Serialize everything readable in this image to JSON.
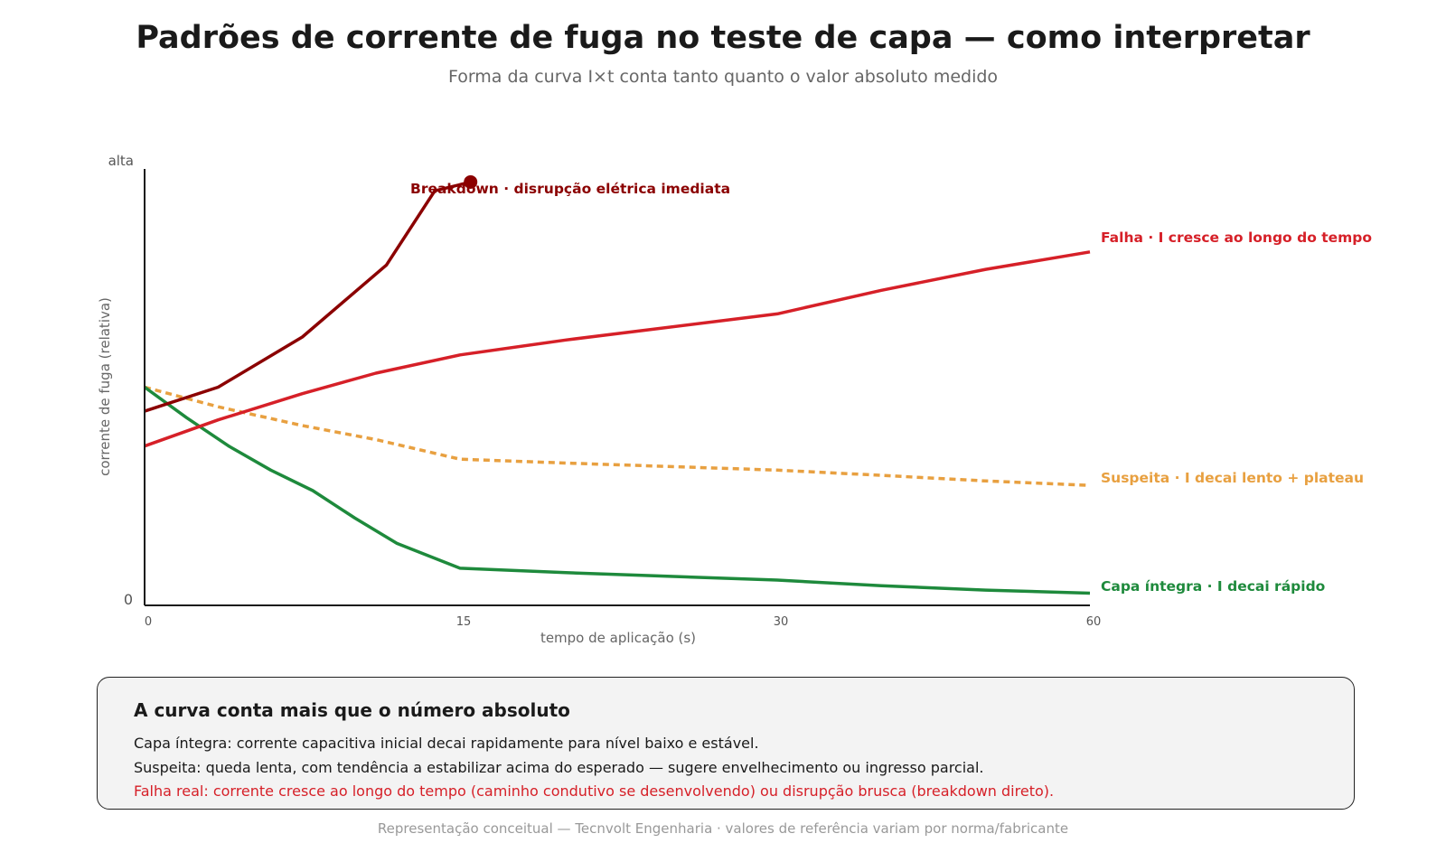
{
  "title": "Padrões de corrente de fuga no teste de capa — como interpretar",
  "subtitle": "Forma da curva I×t conta tanto quanto o valor absoluto medido",
  "chart_data": {
    "type": "line",
    "title": "Padrões de corrente de fuga no teste de capa — como interpretar",
    "subtitle": "Forma da curva I×t conta tanto quanto o valor absoluto medido",
    "xlabel": "tempo de aplicação (s)",
    "ylabel": "corrente de fuga (relativa)",
    "x_ticks": [
      {
        "value": 0,
        "label": "0"
      },
      {
        "value": 15,
        "label": "15"
      },
      {
        "value": 30,
        "label": "30"
      },
      {
        "value": 60,
        "label": "60"
      }
    ],
    "y_ticks": [
      {
        "value": 0,
        "label": "0"
      },
      {
        "value": 1,
        "label": "alta"
      }
    ],
    "xlim": [
      0,
      60
    ],
    "ylim": [
      0,
      1
    ],
    "grid": false,
    "legend": "direct labels at line ends",
    "series": [
      {
        "name": "Breakdown · disrupção elétrica imediata",
        "color": "#8b0000",
        "style": "solid",
        "end_marker": true,
        "points": [
          [
            0,
            0.445
          ],
          [
            3.5,
            0.5
          ],
          [
            7.5,
            0.615
          ],
          [
            11.5,
            0.78
          ],
          [
            13.8,
            0.95
          ],
          [
            15.5,
            0.97
          ]
        ]
      },
      {
        "name": "Falha · I cresce ao longo do tempo",
        "color": "#d62028",
        "style": "solid",
        "points": [
          [
            0,
            0.365
          ],
          [
            3.5,
            0.425
          ],
          [
            7.5,
            0.485
          ],
          [
            11,
            0.532
          ],
          [
            15,
            0.574
          ],
          [
            20,
            0.608
          ],
          [
            30,
            0.668
          ],
          [
            40,
            0.722
          ],
          [
            50,
            0.77
          ],
          [
            60,
            0.81
          ]
        ]
      },
      {
        "name": "Suspeita · I decai lento + plateau",
        "color": "#e8a040",
        "style": "dashed",
        "points": [
          [
            0,
            0.5
          ],
          [
            3.5,
            0.455
          ],
          [
            7.5,
            0.412
          ],
          [
            11,
            0.38
          ],
          [
            15,
            0.335
          ],
          [
            20,
            0.326
          ],
          [
            30,
            0.31
          ],
          [
            40,
            0.298
          ],
          [
            50,
            0.285
          ],
          [
            60,
            0.275
          ]
        ]
      },
      {
        "name": "Capa íntegra · I decai rápido",
        "color": "#1e8a3c",
        "style": "solid",
        "points": [
          [
            0,
            0.5
          ],
          [
            2,
            0.43
          ],
          [
            4,
            0.365
          ],
          [
            6,
            0.31
          ],
          [
            8,
            0.263
          ],
          [
            10,
            0.2
          ],
          [
            12,
            0.142
          ],
          [
            15,
            0.085
          ],
          [
            20,
            0.075
          ],
          [
            30,
            0.058
          ],
          [
            40,
            0.045
          ],
          [
            50,
            0.035
          ],
          [
            60,
            0.028
          ]
        ]
      }
    ]
  },
  "panel": {
    "title": "A curva conta mais que o número absoluto",
    "line1": "Capa íntegra: corrente capacitiva inicial decai rapidamente para nível baixo e estável.",
    "line2": "Suspeita: queda lenta, com tendência a estabilizar acima do esperado — sugere envelhecimento ou ingresso parcial.",
    "line3": "Falha real: corrente cresce ao longo do tempo (caminho condutivo se desenvolvendo) ou disrupção brusca (breakdown direto).",
    "line3_color": "#d62028"
  },
  "footer": "Representação conceitual — Tecnvolt Engenharia · valores de referência variam por norma/fabricante"
}
